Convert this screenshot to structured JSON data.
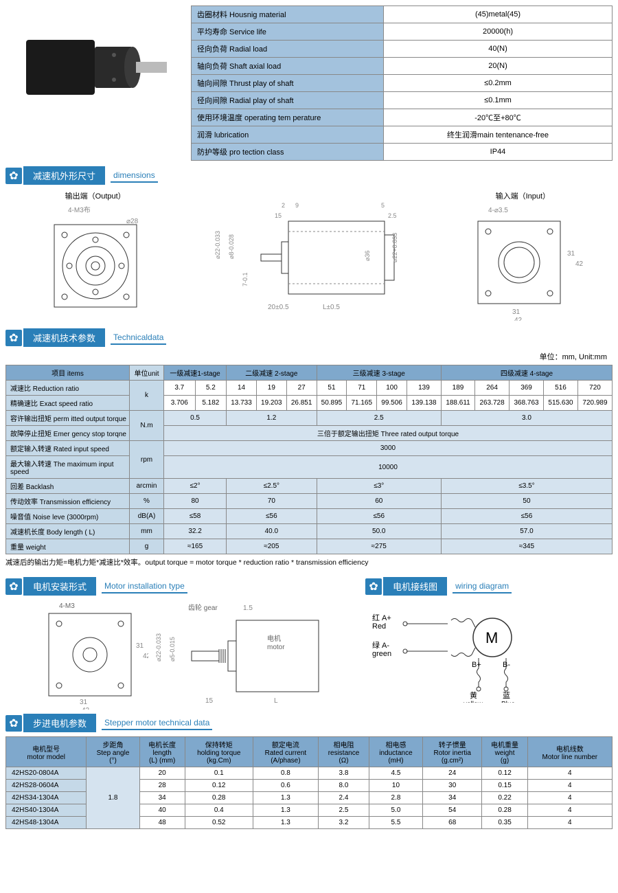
{
  "specs": {
    "rows": [
      {
        "label": "齿圈材料 Housnig material",
        "value": "(45)metal(45)"
      },
      {
        "label": "平均寿命 Service life",
        "value": "20000(h)"
      },
      {
        "label": "径向负荷 Radial load",
        "value": "40(N)"
      },
      {
        "label": "轴向负荷 Shaft axial load",
        "value": "20(N)"
      },
      {
        "label": "轴向间隙 Thrust play of shaft",
        "value": "≤0.2mm"
      },
      {
        "label": "径向间隙 Radial play of shaft",
        "value": "≤0.1mm"
      },
      {
        "label": "使用环境温度 operating tem perature",
        "value": "-20℃至+80℃"
      },
      {
        "label": "润滑 lubrication",
        "value": "终生润滑main tentenance-free"
      },
      {
        "label": "防护等级 pro tection class",
        "value": "IP44"
      }
    ]
  },
  "section1": {
    "cn": "减速机外形尺寸",
    "en": "dimensions"
  },
  "section2": {
    "cn": "减速机技术参数",
    "en": "Technicaldata"
  },
  "section3": {
    "cn": "电机安装形式",
    "en": "Motor installation type"
  },
  "section4": {
    "cn": "电机接线图",
    "en": "wiring diagram"
  },
  "section5": {
    "cn": "步进电机参数",
    "en": "Stepper motor technical data"
  },
  "drawing": {
    "output_label": "输出端（Output）",
    "input_label": "输入端（Input）",
    "unit": "单位：mm, Unit:mm"
  },
  "tech": {
    "headers": {
      "item": "项目 items",
      "unit": "单位unit",
      "s1": "一级减速1-stage",
      "s2": "二级减速 2-stage",
      "s3": "三级减速 3-stage",
      "s4": "四级减速 4-stage"
    },
    "reduction": {
      "label": "减速比 Reduction ratio",
      "unit": "k",
      "vals": [
        "3.7",
        "5.2",
        "14",
        "19",
        "27",
        "51",
        "71",
        "100",
        "139",
        "189",
        "264",
        "369",
        "516",
        "720"
      ]
    },
    "exact": {
      "label": "精确速比  Exact speed ratio",
      "vals": [
        "3.706",
        "5.182",
        "13.733",
        "19.203",
        "26.851",
        "50.895",
        "71.165",
        "99.506",
        "139.138",
        "188.611",
        "263.728",
        "368.763",
        "515.630",
        "720.989"
      ]
    },
    "torque": {
      "label": "容许输出扭矩 perm itted output torque",
      "unit": "N.m",
      "vals": [
        "0.5",
        "1.2",
        "2.5",
        "3.0"
      ]
    },
    "emerg": {
      "label": "故障停止扭矩 Emer gency stop torqne",
      "val": "三倍于额定输出扭矩 Three rated output torque"
    },
    "rated": {
      "label": "额定输入转速 Rated input speed",
      "unit": "rpm",
      "val": "3000"
    },
    "max": {
      "label": "最大输入转速 The maximum input speed",
      "val": "10000"
    },
    "backlash": {
      "label": "回差 Backlash",
      "unit": "arcmin",
      "vals": [
        "≤2°",
        "≤2.5°",
        "≤3°",
        "≤3.5°"
      ]
    },
    "trans": {
      "label": "传动效率 Transmission efficiency",
      "unit": "%",
      "vals": [
        "80",
        "70",
        "60",
        "50"
      ]
    },
    "noise": {
      "label": "噪音值 Noise leve (3000rpm)",
      "unit": "dB(A)",
      "vals": [
        "≤58",
        "≤56",
        "≤56",
        "≤56"
      ]
    },
    "length": {
      "label": "减速机长度 Body length ( L)",
      "unit": "mm",
      "vals": [
        "32.2",
        "40.0",
        "50.0",
        "57.0"
      ]
    },
    "weight": {
      "label": "重量 weight",
      "unit": "g",
      "vals": [
        "≈165",
        "≈205",
        "≈275",
        "≈345"
      ]
    },
    "note": "减速后的输出力矩=电机力矩*减速比*效率。output torque = motor torque * reduction ratio * transmission efficiency"
  },
  "wiring": {
    "red": "红 A+",
    "red_en": "Red",
    "green": "绿 A-",
    "green_en": "green",
    "yellow_b": "B+",
    "yellow": "黄",
    "yellow_en": "yellow",
    "blue_b": "B-",
    "blue": "蓝",
    "blue_en": "Blue",
    "motor": "M"
  },
  "motor": {
    "headers": {
      "model": "电机型号",
      "model_en": "motor model",
      "step": "步距角",
      "step_en": "Step angle",
      "step_u": "(°)",
      "len": "电机长度",
      "len_en": "length",
      "len_u": "(L) (mm)",
      "hold": "保持转矩",
      "hold_en": "holding torque",
      "hold_u": "(kg.Cm)",
      "curr": "额定电流",
      "curr_en": "Rated current",
      "curr_u": "(A/phase)",
      "res": "相电阻",
      "res_en": "resistance",
      "res_u": "(Ω)",
      "ind": "相电感",
      "ind_en": "inductance",
      "ind_u": "(mH)",
      "iner": "转子惯量",
      "iner_en": "Rotor inertia",
      "iner_u": "(g.cm²)",
      "wt": "电机重量",
      "wt_en": "weight",
      "wt_u": "(g)",
      "line": "电机线数",
      "line_en": "Motor line number"
    },
    "step_val": "1.8",
    "rows": [
      {
        "model": "42HS20-0804A",
        "len": "20",
        "hold": "0.1",
        "curr": "0.8",
        "res": "3.8",
        "ind": "4.5",
        "iner": "24",
        "wt": "0.12",
        "line": "4"
      },
      {
        "model": "42HS28-0604A",
        "len": "28",
        "hold": "0.12",
        "curr": "0.6",
        "res": "8.0",
        "ind": "10",
        "iner": "30",
        "wt": "0.15",
        "line": "4"
      },
      {
        "model": "42HS34-1304A",
        "len": "34",
        "hold": "0.28",
        "curr": "1.3",
        "res": "2.4",
        "ind": "2.8",
        "iner": "34",
        "wt": "0.22",
        "line": "4"
      },
      {
        "model": "42HS40-1304A",
        "len": "40",
        "hold": "0.4",
        "curr": "1.3",
        "res": "2.5",
        "ind": "5.0",
        "iner": "54",
        "wt": "0.28",
        "line": "4"
      },
      {
        "model": "42HS48-1304A",
        "len": "48",
        "hold": "0.52",
        "curr": "1.3",
        "res": "3.2",
        "ind": "5.5",
        "iner": "68",
        "wt": "0.35",
        "line": "4"
      }
    ]
  },
  "dim_labels": {
    "m3": "4-M3布",
    "d28": "⌀28",
    "d22": "⌀22-0.033",
    "d8": "⌀8-0.028",
    "d70": "7-0.1",
    "n20": "20±0.5",
    "nL": "L±0.5",
    "n2": "2",
    "n9": "9",
    "n15": "15",
    "n5": "5",
    "n25": "2.5",
    "d36": "⌀36",
    "d22p": "⌀22+0.033",
    "m35": "4-⌀3.5",
    "n31": "31",
    "n42": "42",
    "gear": "齿轮 gear",
    "n15b": "1.5",
    "d5": "⌀5-0.015",
    "motor_cn": "电机",
    "motor_en": "motor"
  }
}
